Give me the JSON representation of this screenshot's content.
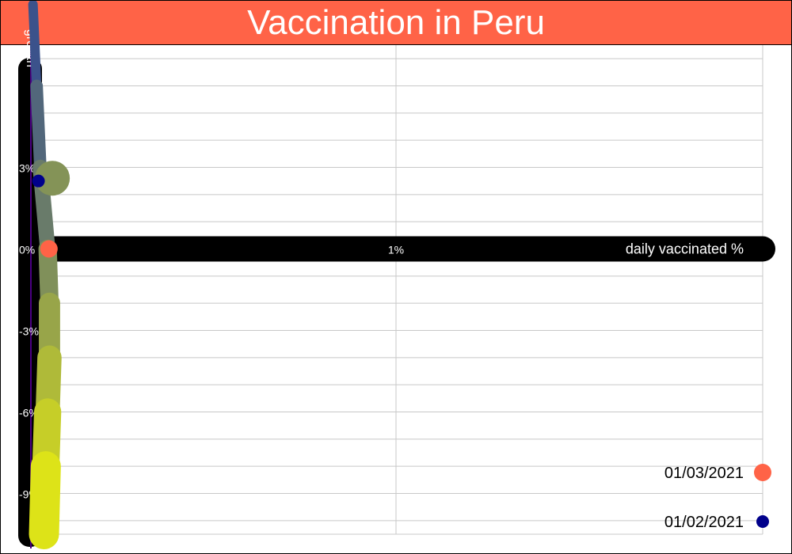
{
  "title": "Vaccination in Peru",
  "colors": {
    "title_bar": "#ff6347",
    "grid": "#c8c8c8",
    "axis_band": "#000000",
    "axis_text": "#ffffff",
    "start_marker": "#00008b",
    "end_marker": "#ff6347",
    "left_rule": "#4b0082",
    "trail_start": "#3b528b",
    "trail_end": "#dde318"
  },
  "chart_data": {
    "type": "line",
    "title": "Vaccination in Peru",
    "xlabel": "daily vaccinated %",
    "ylabel": "growth",
    "x_ticks": [
      {
        "value": 1,
        "label": "1%"
      }
    ],
    "y_ticks": [
      {
        "value": 3,
        "label": "3%"
      },
      {
        "value": 0,
        "label": "0%"
      },
      {
        "value": -3,
        "label": "-3%"
      },
      {
        "value": -6,
        "label": "-6%"
      },
      {
        "value": -9,
        "label": "-9%"
      }
    ],
    "xlim": [
      0,
      2
    ],
    "ylim": [
      -10.5,
      7.5
    ],
    "grid": true,
    "series": [
      {
        "points": [
          {
            "x": 0.01,
            "y": 9.0
          },
          {
            "x": 0.02,
            "y": 6.0
          },
          {
            "x": 0.03,
            "y": 3.0
          },
          {
            "x": 0.05,
            "y": 0.0
          },
          {
            "x": 0.055,
            "y": -2.0
          },
          {
            "x": 0.055,
            "y": -4.0
          },
          {
            "x": 0.05,
            "y": -6.0
          },
          {
            "x": 0.045,
            "y": -8.0
          },
          {
            "x": 0.04,
            "y": -10.5
          }
        ]
      }
    ],
    "legend": {
      "placement": "bottom-right",
      "entries": [
        {
          "label": "01/03/2021",
          "role": "end"
        },
        {
          "label": "01/02/2021",
          "role": "start"
        }
      ]
    },
    "markers": {
      "start": {
        "x": 0.025,
        "y": 2.5,
        "date": "01/02/2021"
      },
      "end": {
        "x": 0.045,
        "y": 0.0,
        "date": "01/03/2021"
      }
    }
  }
}
